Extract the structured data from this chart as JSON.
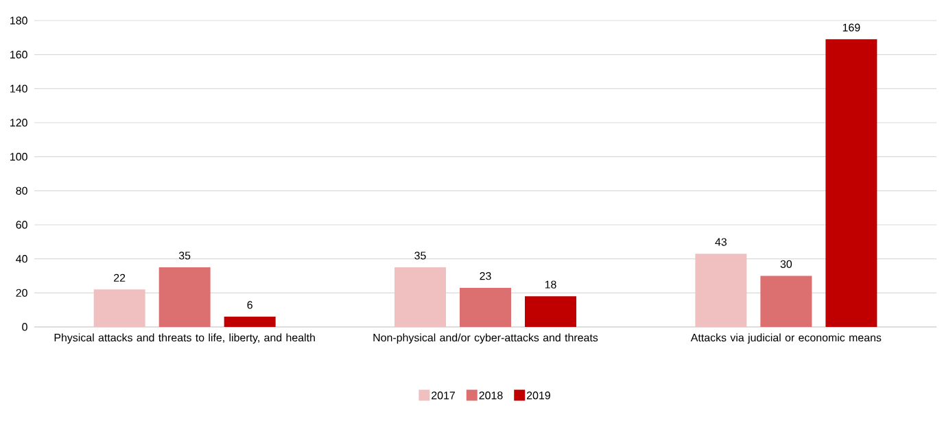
{
  "chart_data": {
    "type": "bar",
    "categories": [
      "Physical attacks and threats to life, liberty, and health",
      "Non-physical and/or cyber-attacks and threats",
      "Attacks via judicial or economic means"
    ],
    "series": [
      {
        "name": "2017",
        "color": "#f0c0c0",
        "values": [
          22,
          35,
          43
        ]
      },
      {
        "name": "2018",
        "color": "#dc7070",
        "values": [
          35,
          23,
          30
        ]
      },
      {
        "name": "2019",
        "color": "#c00000",
        "values": [
          6,
          18,
          169
        ]
      }
    ],
    "ylim": [
      0,
      180
    ],
    "yticks": [
      0,
      20,
      40,
      60,
      80,
      100,
      120,
      140,
      160,
      180
    ],
    "grid": "y",
    "legend": "bottom",
    "data_labels": true
  }
}
